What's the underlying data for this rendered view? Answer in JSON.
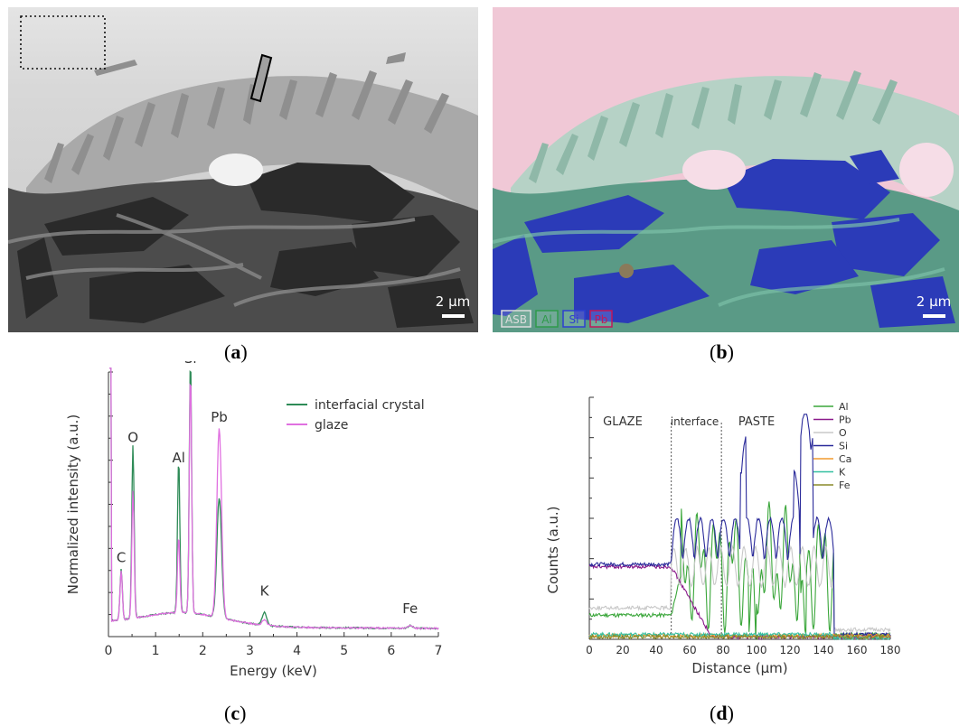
{
  "panel_a": {
    "scale_label": "2 µm",
    "caption_letter": "a"
  },
  "panel_b": {
    "scale_label": "2 µm",
    "caption_letter": "b",
    "tags": [
      {
        "label": "ASB",
        "color": "#dddddd"
      },
      {
        "label": "Al",
        "color": "#2e9a4a"
      },
      {
        "label": "Si",
        "color": "#2d3fd0"
      },
      {
        "label": "Pb",
        "color": "#c0175a"
      }
    ],
    "colors": {
      "glaze": "#f0c8d6",
      "paste": "#5a9a86",
      "si": "#2b3bb8"
    }
  },
  "panel_c": {
    "caption_letter": "c",
    "chart_data": {
      "type": "line",
      "xlabel": "Energy (keV)",
      "ylabel": "Normalized intensity (a.u.)",
      "xlim": [
        0,
        7
      ],
      "xticks": [
        "0",
        "1",
        "2",
        "3",
        "4",
        "5",
        "6",
        "7"
      ],
      "series": [
        {
          "name": "interfacial crystal",
          "color": "#2e8b57",
          "peaks": [
            [
              0.27,
              0.2
            ],
            [
              0.52,
              0.68
            ],
            [
              1.49,
              0.6
            ],
            [
              1.74,
              1.0
            ],
            [
              2.35,
              0.47
            ],
            [
              3.31,
              0.05
            ],
            [
              6.4,
              0.01
            ]
          ]
        },
        {
          "name": "glaze",
          "color": "#e070e0",
          "peaks": [
            [
              0.27,
              0.19
            ],
            [
              0.52,
              0.5
            ],
            [
              1.49,
              0.3
            ],
            [
              1.74,
              0.94
            ],
            [
              2.35,
              0.74
            ],
            [
              3.31,
              0.02
            ],
            [
              6.4,
              0.01
            ]
          ]
        }
      ],
      "annotations": [
        {
          "text": "C",
          "x": 0.27
        },
        {
          "text": "O",
          "x": 0.52
        },
        {
          "text": "Al",
          "x": 1.49
        },
        {
          "text": "Si",
          "x": 1.74
        },
        {
          "text": "Pb",
          "x": 2.35
        },
        {
          "text": "K",
          "x": 3.31
        },
        {
          "text": "Fe",
          "x": 6.4
        }
      ]
    }
  },
  "panel_d": {
    "caption_letter": "d",
    "chart_data": {
      "type": "line",
      "xlabel": "Distance (µm)",
      "ylabel": "Counts (a.u.)",
      "xlim": [
        0,
        180
      ],
      "xticks": [
        "0",
        "20",
        "40",
        "60",
        "80",
        "100",
        "120",
        "140",
        "160",
        "180"
      ],
      "regions": [
        {
          "text": "GLAZE",
          "x": 20
        },
        {
          "text": "interface",
          "x": 63
        },
        {
          "text": "PASTE",
          "x": 100
        }
      ],
      "boundaries": [
        49,
        79
      ],
      "series": [
        {
          "name": "Al",
          "color": "#3aa63a"
        },
        {
          "name": "Pb",
          "color": "#8b1a8b"
        },
        {
          "name": "O",
          "color": "#c8c8c8"
        },
        {
          "name": "Si",
          "color": "#2a2a9a"
        },
        {
          "name": "Ca",
          "color": "#f29a2e"
        },
        {
          "name": "K",
          "color": "#33bfa0"
        },
        {
          "name": "Fe",
          "color": "#8a8a2a"
        }
      ]
    }
  }
}
